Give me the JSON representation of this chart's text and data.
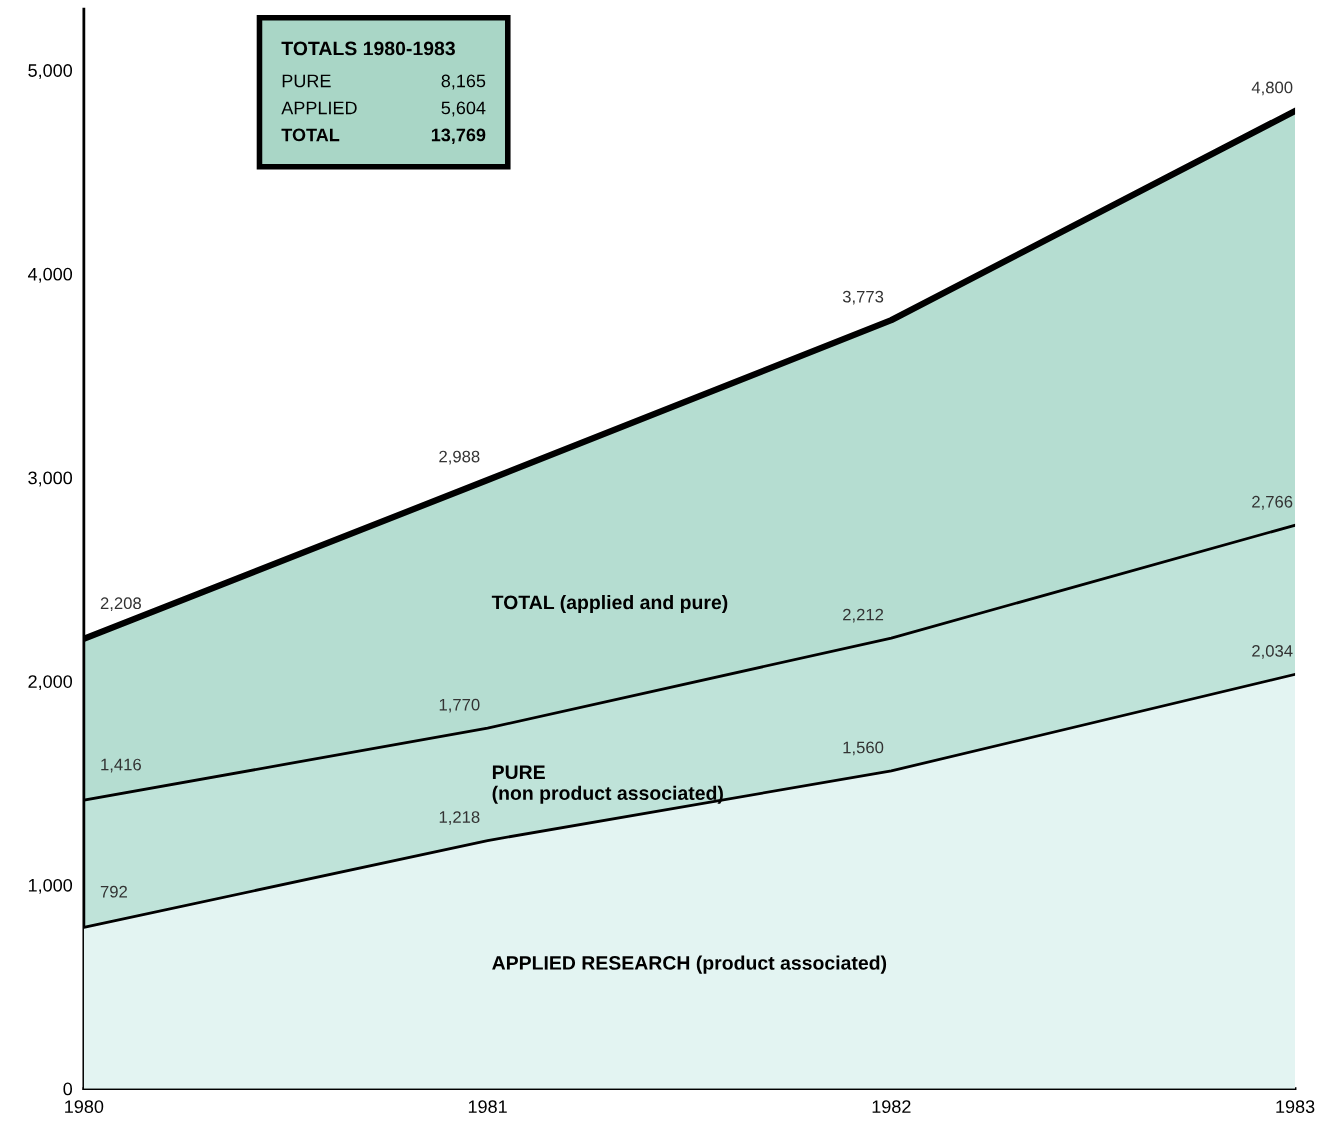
{
  "chart_data": {
    "type": "area",
    "x": [
      1980,
      1981,
      1982,
      1983
    ],
    "xlim": [
      1980,
      1983
    ],
    "xticks": [
      1980,
      1981,
      1982,
      1983
    ],
    "ylim": [
      0,
      5300
    ],
    "yticks": [
      {
        "value": 0,
        "label": "0"
      },
      {
        "value": 1000,
        "label": "1,000"
      },
      {
        "value": 2000,
        "label": "2,000"
      },
      {
        "value": 3000,
        "label": "3,000"
      },
      {
        "value": 4000,
        "label": "4,000"
      },
      {
        "value": 5000,
        "label": "5,000"
      }
    ],
    "series": [
      {
        "name": "TOTAL (applied and pure)",
        "color": "#b5ddd1",
        "values": [
          2208,
          2988,
          3773,
          4800
        ],
        "value_labels": [
          "2,208",
          "2,988",
          "3,773",
          "4,800"
        ]
      },
      {
        "name": "PURE\n(non product associated)",
        "color": "#bfe3d9",
        "values": [
          1416,
          1770,
          2212,
          2766
        ],
        "value_labels": [
          "1,416",
          "1,770",
          "2,212",
          "2,766"
        ]
      },
      {
        "name": "APPLIED RESEARCH (product associated)",
        "color": "#e3f4f2",
        "values": [
          792,
          1218,
          1560,
          2034
        ],
        "value_labels": [
          "792",
          "1,218",
          "1,560",
          "2,034"
        ]
      }
    ],
    "grid": false,
    "legend": false,
    "annotations": [
      "TOTALS 1980-1983",
      "PURE",
      "8,165",
      "APPLIED",
      "5,604",
      "TOTAL",
      "13,769"
    ]
  }
}
